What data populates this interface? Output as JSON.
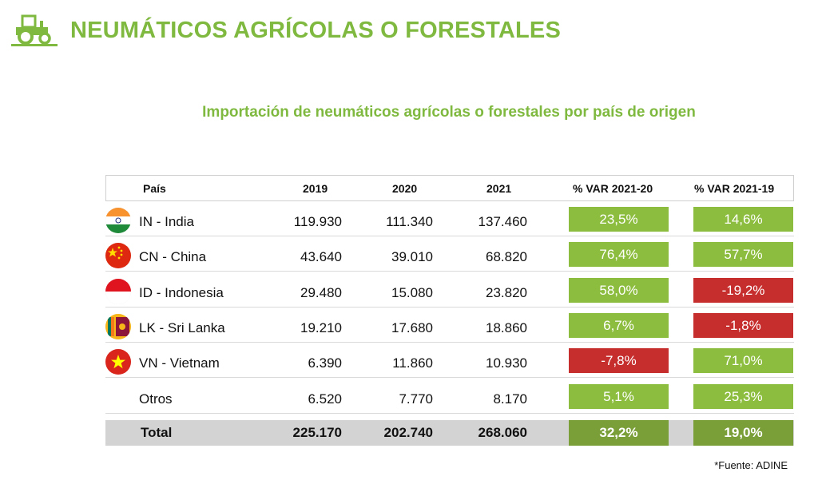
{
  "header": {
    "title": "NEUMÁTICOS AGRÍCOLAS O FORESTALES",
    "icon": "tractor-icon",
    "accent_color": "#7fb93f"
  },
  "subtitle": "Importación de neumáticos agrícolas o forestales por país de origen",
  "table": {
    "columns": [
      "País",
      "2019",
      "2020",
      "2021",
      "% VAR 2021-20",
      "% VAR 2021-19"
    ],
    "rows": [
      {
        "flag": "india-flag-icon",
        "country": "IN - India",
        "y2019": "119.930",
        "y2020": "111.340",
        "y2021": "137.460",
        "var2120": "23,5%",
        "var2119": "14,6%",
        "var2120_sign": "pos",
        "var2119_sign": "pos"
      },
      {
        "flag": "china-flag-icon",
        "country": "CN - China",
        "y2019": "43.640",
        "y2020": "39.010",
        "y2021": "68.820",
        "var2120": "76,4%",
        "var2119": "57,7%",
        "var2120_sign": "pos",
        "var2119_sign": "pos"
      },
      {
        "flag": "indonesia-flag-icon",
        "country": "ID - Indonesia",
        "y2019": "29.480",
        "y2020": "15.080",
        "y2021": "23.820",
        "var2120": "58,0%",
        "var2119": "-19,2%",
        "var2120_sign": "pos",
        "var2119_sign": "neg"
      },
      {
        "flag": "sri-lanka-flag-icon",
        "country": "LK - Sri Lanka",
        "y2019": "19.210",
        "y2020": "17.680",
        "y2021": "18.860",
        "var2120": "6,7%",
        "var2119": "-1,8%",
        "var2120_sign": "pos",
        "var2119_sign": "neg"
      },
      {
        "flag": "vietnam-flag-icon",
        "country": "VN - Vietnam",
        "y2019": "6.390",
        "y2020": "11.860",
        "y2021": "10.930",
        "var2120": "-7,8%",
        "var2119": "71,0%",
        "var2120_sign": "neg",
        "var2119_sign": "pos"
      },
      {
        "flag": "",
        "country": "Otros",
        "y2019": "6.520",
        "y2020": "7.770",
        "y2021": "8.170",
        "var2120": "5,1%",
        "var2119": "25,3%",
        "var2120_sign": "pos",
        "var2119_sign": "pos"
      }
    ],
    "total": {
      "country": "Total",
      "y2019": "225.170",
      "y2020": "202.740",
      "y2021": "268.060",
      "var2120": "32,2%",
      "var2119": "19,0%"
    },
    "colors": {
      "positive": "#8dbd3f",
      "negative": "#c62d2d",
      "total_var": "#7a9e38",
      "total_bg": "#d3d3d3"
    }
  },
  "source": "*Fuente: ADINE"
}
